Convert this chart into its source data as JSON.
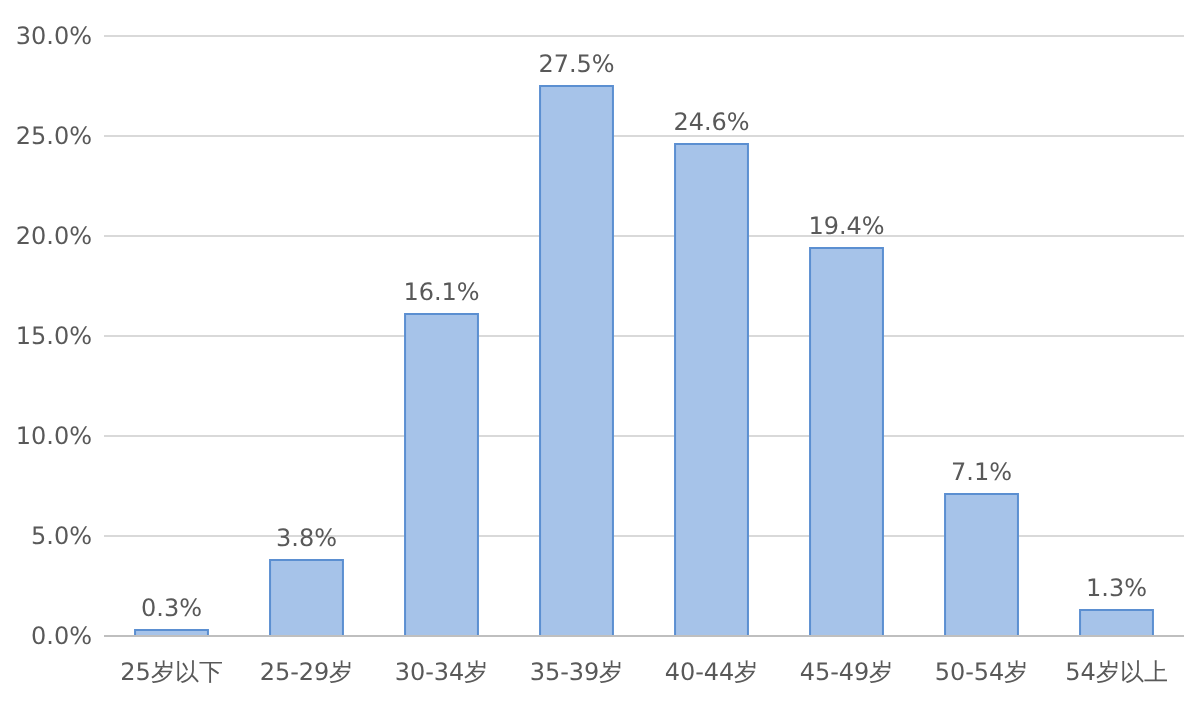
{
  "chart_data": {
    "type": "bar",
    "categories": [
      "25岁以下",
      "25-29岁",
      "30-34岁",
      "35-39岁",
      "40-44岁",
      "45-49岁",
      "50-54岁",
      "54岁以上"
    ],
    "values": [
      0.3,
      3.8,
      16.1,
      27.5,
      24.6,
      19.4,
      7.1,
      1.3
    ],
    "value_labels": [
      "0.3%",
      "3.8%",
      "16.1%",
      "27.5%",
      "24.6%",
      "19.4%",
      "7.1%",
      "1.3%"
    ],
    "color": "#a6c3e9",
    "ylim": [
      0,
      30
    ],
    "yticks": [
      {
        "value": 0,
        "label": "0.0%"
      },
      {
        "value": 5,
        "label": "5.0%"
      },
      {
        "value": 10,
        "label": "10.0%"
      },
      {
        "value": 15,
        "label": "15.0%"
      },
      {
        "value": 20,
        "label": "20.0%"
      },
      {
        "value": 25,
        "label": "25.0%"
      },
      {
        "value": 30,
        "label": "30.0%"
      }
    ],
    "grid": "y"
  }
}
